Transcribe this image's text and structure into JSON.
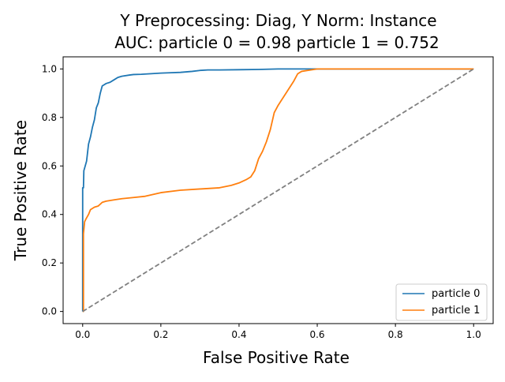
{
  "chart_data": {
    "type": "line",
    "title_lines": [
      "Y Preprocessing: Diag, Y Norm: Instance",
      "AUC: particle 0 = 0.98 particle 1 = 0.752"
    ],
    "xlabel": "False Positive Rate",
    "ylabel": "True Positive Rate",
    "xlim": [
      -0.05,
      1.05
    ],
    "ylim": [
      -0.05,
      1.05
    ],
    "x_ticks": [
      0.0,
      0.2,
      0.4,
      0.6,
      0.8,
      1.0
    ],
    "y_ticks": [
      0.0,
      0.2,
      0.4,
      0.6,
      0.8,
      1.0
    ],
    "x_tick_labels": [
      "0.0",
      "0.2",
      "0.4",
      "0.6",
      "0.8",
      "1.0"
    ],
    "y_tick_labels": [
      "0.0",
      "0.2",
      "0.4",
      "0.6",
      "0.8",
      "1.0"
    ],
    "grid": false,
    "legend_position": "lower-right",
    "series": [
      {
        "name": "particle 0",
        "color": "#1f77b4",
        "x": [
          0.0,
          0.0,
          0.002,
          0.003,
          0.01,
          0.015,
          0.02,
          0.025,
          0.03,
          0.035,
          0.04,
          0.045,
          0.05,
          0.055,
          0.06,
          0.07,
          0.08,
          0.09,
          0.1,
          0.12,
          0.13,
          0.15,
          0.2,
          0.22,
          0.25,
          0.28,
          0.3,
          0.32,
          0.35,
          0.4,
          0.45,
          0.5,
          0.6,
          0.8,
          1.0
        ],
        "y": [
          0.0,
          0.51,
          0.51,
          0.58,
          0.62,
          0.69,
          0.72,
          0.76,
          0.79,
          0.84,
          0.86,
          0.9,
          0.93,
          0.935,
          0.94,
          0.945,
          0.955,
          0.965,
          0.97,
          0.975,
          0.977,
          0.978,
          0.983,
          0.984,
          0.986,
          0.99,
          0.994,
          0.996,
          0.996,
          0.997,
          0.998,
          1.0,
          1.0,
          1.0,
          1.0
        ]
      },
      {
        "name": "particle 1",
        "color": "#ff7f0e",
        "x": [
          0.0,
          0.002,
          0.002,
          0.005,
          0.008,
          0.015,
          0.02,
          0.03,
          0.04,
          0.05,
          0.06,
          0.08,
          0.1,
          0.13,
          0.16,
          0.2,
          0.25,
          0.3,
          0.35,
          0.38,
          0.4,
          0.42,
          0.43,
          0.44,
          0.45,
          0.46,
          0.47,
          0.48,
          0.49,
          0.5,
          0.52,
          0.54,
          0.55,
          0.56,
          0.58,
          0.6,
          0.65,
          1.0
        ],
        "y": [
          0.0,
          0.0,
          0.32,
          0.37,
          0.38,
          0.4,
          0.42,
          0.43,
          0.435,
          0.45,
          0.455,
          0.46,
          0.465,
          0.47,
          0.475,
          0.49,
          0.5,
          0.505,
          0.51,
          0.52,
          0.53,
          0.545,
          0.555,
          0.58,
          0.63,
          0.66,
          0.7,
          0.75,
          0.82,
          0.85,
          0.9,
          0.95,
          0.98,
          0.99,
          0.995,
          1.0,
          1.0,
          1.0
        ]
      }
    ],
    "reference_line": {
      "x": [
        0.0,
        1.0
      ],
      "y": [
        0.0,
        1.0
      ],
      "color": "#808080",
      "dashed": true
    }
  }
}
